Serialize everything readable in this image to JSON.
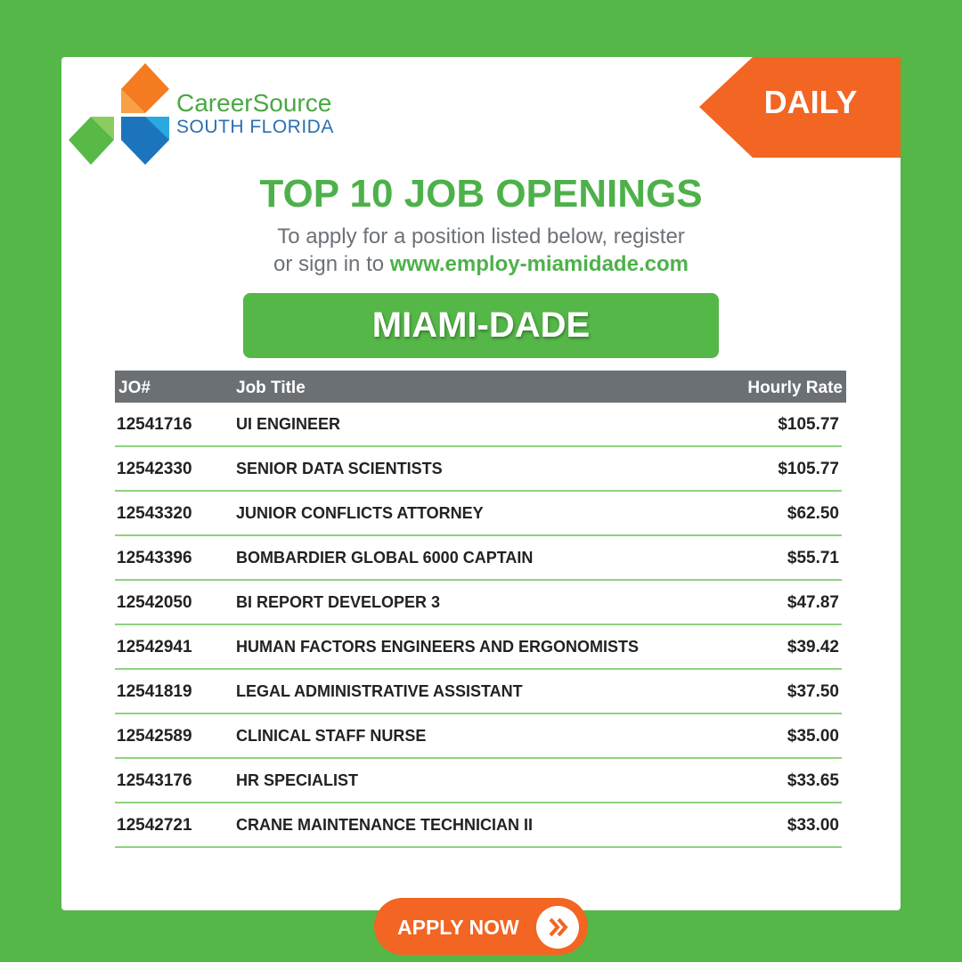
{
  "logo": {
    "name": "CareerSource",
    "region": "SOUTH FLORIDA"
  },
  "badge": "DAILY",
  "title": "TOP 10 JOB OPENINGS",
  "subtitle": {
    "lines": [
      "To apply for a position listed below, register",
      "or sign in to"
    ],
    "link": "www.employ-miamidade.com"
  },
  "area": "MIAMI-DADE",
  "table": {
    "header": [
      "JO#",
      "Job Title",
      "Hourly Rate"
    ],
    "rows": [
      [
        "12541716",
        "UI ENGINEER",
        "$105.77"
      ],
      [
        "12542330",
        "SENIOR DATA SCIENTISTS",
        "$105.77"
      ],
      [
        "12543320",
        "JUNIOR CONFLICTS ATTORNEY",
        "$62.50"
      ],
      [
        "12543396",
        "BOMBARDIER GLOBAL 6000 CAPTAIN",
        "$55.71"
      ],
      [
        "12542050",
        "BI REPORT DEVELOPER 3",
        "$47.87"
      ],
      [
        "12542941",
        "HUMAN FACTORS ENGINEERS AND ERGONOMISTS",
        "$39.42"
      ],
      [
        "12541819",
        "LEGAL ADMINISTRATIVE ASSISTANT",
        "$37.50"
      ],
      [
        "12542589",
        "CLINICAL STAFF NURSE",
        "$35.00"
      ],
      [
        "12543176",
        "HR SPECIALIST",
        "$33.65"
      ],
      [
        "12542721",
        "CRANE MAINTENANCE TECHNICIAN II",
        "$33.00"
      ]
    ]
  },
  "button": "APPLY NOW"
}
